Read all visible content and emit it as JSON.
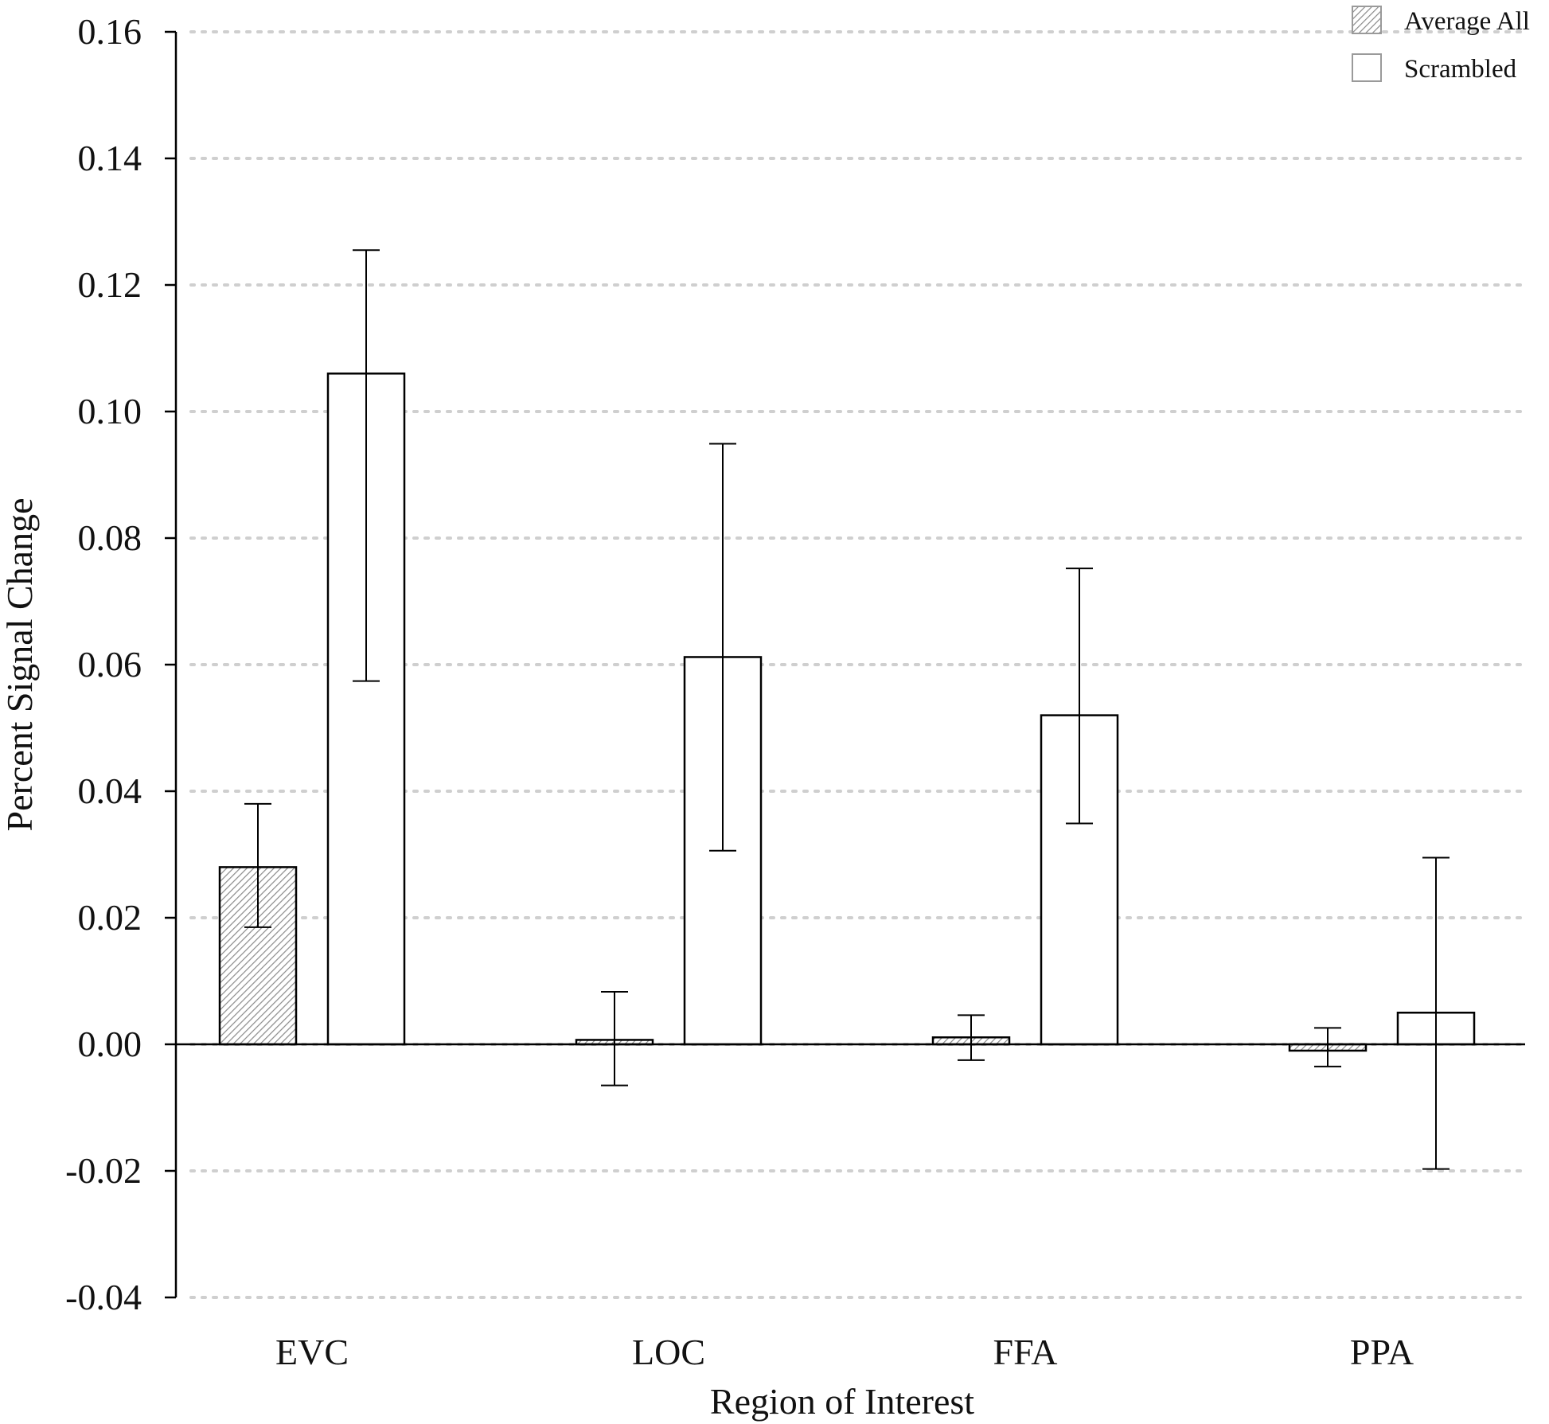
{
  "chart_data": {
    "type": "bar",
    "title": "",
    "xlabel": "Region of Interest",
    "ylabel": "Percent Signal Change",
    "ylim": [
      -0.04,
      0.16
    ],
    "yticks": [
      "0.16",
      "0.14",
      "0.12",
      "0.10",
      "0.08",
      "0.06",
      "0.04",
      "0.02",
      "0.00",
      "-0.02",
      "-0.04"
    ],
    "categories": [
      "EVC",
      "LOC",
      "FFA",
      "PPA"
    ],
    "grid": "horizontal dotted",
    "legend_position": "top-right",
    "series": [
      {
        "name": "Average All",
        "fill": "hatched",
        "values": [
          0.028,
          0.0007,
          0.0011,
          -0.001
        ],
        "err_low": [
          0.0185,
          -0.0065,
          -0.0025,
          -0.0035
        ],
        "err_high": [
          0.038,
          0.0083,
          0.0046,
          0.0026
        ]
      },
      {
        "name": "Scrambled",
        "fill": "white",
        "values": [
          0.106,
          0.0612,
          0.052,
          0.005
        ],
        "err_low": [
          0.0574,
          0.0306,
          0.0349,
          -0.0197
        ],
        "err_high": [
          0.1255,
          0.0949,
          0.0752,
          0.0295
        ]
      }
    ]
  },
  "colors": {
    "bar_outline": "#000000",
    "hatch": "#8a8a8a",
    "grid": "#cfcfcf"
  }
}
